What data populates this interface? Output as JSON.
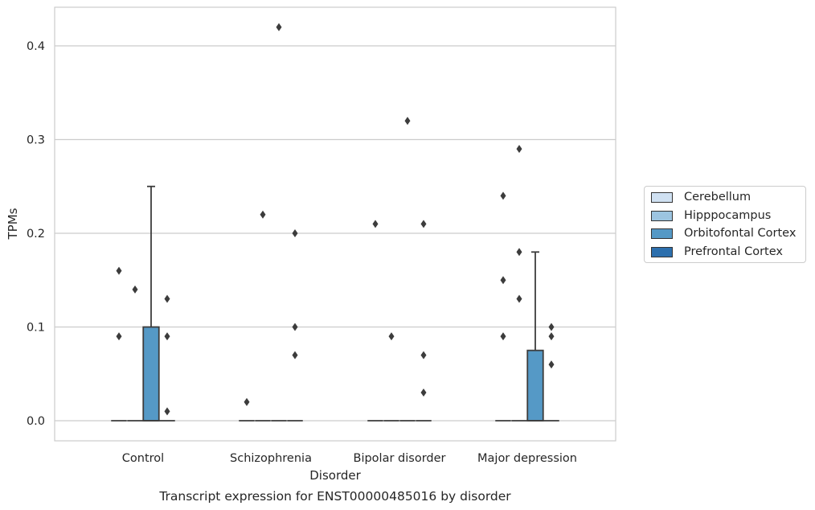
{
  "chart_data": {
    "type": "box",
    "title": "Transcript expression for ENST00000485016 by disorder",
    "xlabel": "Disorder",
    "ylabel": "TPMs",
    "ylim": [
      -0.02,
      0.44
    ],
    "yticks": [
      0.0,
      0.1,
      0.2,
      0.3,
      0.4
    ],
    "ytick_labels": [
      "0.0",
      "0.1",
      "0.2",
      "0.3",
      "0.4"
    ],
    "grid": "horizontal",
    "legend_position": "right",
    "categories": [
      "Control",
      "Schizophrenia",
      "Bipolar disorder",
      "Major depression"
    ],
    "series": [
      {
        "name": "Cerebellum",
        "color": "#d0e1f2",
        "boxes": [
          {
            "q1": 0,
            "median": 0,
            "q3": 0,
            "whisker_low": 0,
            "whisker_high": 0,
            "outliers": [
              0.09,
              0.16
            ]
          },
          {
            "q1": 0,
            "median": 0,
            "q3": 0,
            "whisker_low": 0,
            "whisker_high": 0,
            "outliers": [
              0.02
            ]
          },
          {
            "q1": 0,
            "median": 0,
            "q3": 0,
            "whisker_low": 0,
            "whisker_high": 0,
            "outliers": [
              0.21
            ]
          },
          {
            "q1": 0,
            "median": 0,
            "q3": 0,
            "whisker_low": 0,
            "whisker_high": 0,
            "outliers": [
              0.09,
              0.15,
              0.24
            ]
          }
        ]
      },
      {
        "name": "Hipppocampus",
        "color": "#9cc4e0",
        "boxes": [
          {
            "q1": 0,
            "median": 0,
            "q3": 0,
            "whisker_low": 0,
            "whisker_high": 0,
            "outliers": [
              0.14
            ]
          },
          {
            "q1": 0,
            "median": 0,
            "q3": 0,
            "whisker_low": 0,
            "whisker_high": 0,
            "outliers": [
              0.22
            ]
          },
          {
            "q1": 0,
            "median": 0,
            "q3": 0,
            "whisker_low": 0,
            "whisker_high": 0,
            "outliers": [
              0.09
            ]
          },
          {
            "q1": 0,
            "median": 0,
            "q3": 0,
            "whisker_low": 0,
            "whisker_high": 0,
            "outliers": [
              0.13,
              0.18,
              0.29
            ]
          }
        ]
      },
      {
        "name": "Orbitofontal Cortex",
        "color": "#5599c6",
        "boxes": [
          {
            "q1": 0,
            "median": 0,
            "q3": 0.1,
            "whisker_low": 0,
            "whisker_high": 0.25,
            "outliers": []
          },
          {
            "q1": 0,
            "median": 0,
            "q3": 0,
            "whisker_low": 0,
            "whisker_high": 0,
            "outliers": [
              0.42
            ]
          },
          {
            "q1": 0,
            "median": 0,
            "q3": 0,
            "whisker_low": 0,
            "whisker_high": 0,
            "outliers": [
              0.32
            ]
          },
          {
            "q1": 0,
            "median": 0,
            "q3": 0.075,
            "whisker_low": 0,
            "whisker_high": 0.18,
            "outliers": []
          }
        ]
      },
      {
        "name": "Prefrontal Cortex",
        "color": "#2c6fad",
        "boxes": [
          {
            "q1": 0,
            "median": 0,
            "q3": 0,
            "whisker_low": 0,
            "whisker_high": 0,
            "outliers": [
              0.01,
              0.09,
              0.13
            ]
          },
          {
            "q1": 0,
            "median": 0,
            "q3": 0,
            "whisker_low": 0,
            "whisker_high": 0,
            "outliers": [
              0.07,
              0.1,
              0.2
            ]
          },
          {
            "q1": 0,
            "median": 0,
            "q3": 0,
            "whisker_low": 0,
            "whisker_high": 0,
            "outliers": [
              0.03,
              0.07,
              0.21
            ]
          },
          {
            "q1": 0,
            "median": 0,
            "q3": 0,
            "whisker_low": 0,
            "whisker_high": 0,
            "outliers": [
              0.06,
              0.09,
              0.1
            ]
          }
        ]
      }
    ]
  },
  "colors": {
    "grid": "#cccccc",
    "axes_frame": "#cccccc",
    "box_edge": "#3c3c3c",
    "text": "#262626"
  }
}
